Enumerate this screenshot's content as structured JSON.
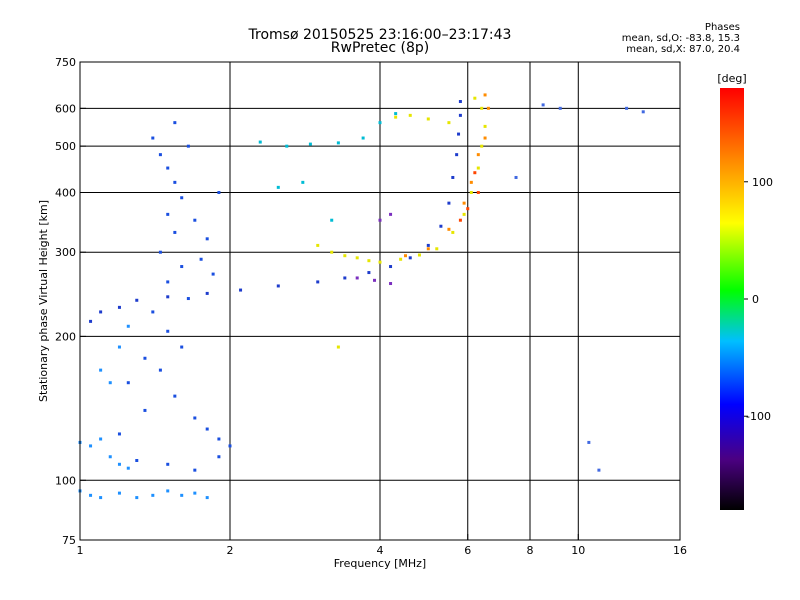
{
  "header": {
    "title": "Tromsø 20150525 23:16:00–23:17:43",
    "subtitle": "RwPretec (8p)",
    "stats_title": "Phases",
    "stats_o": "mean, sd,O: -83.8, 15.3",
    "stats_x": "mean, sd,X: 87.0, 20.4"
  },
  "chart_data": {
    "type": "scatter",
    "title": "Tromsø 20150525 23:16:00–23:17:43",
    "subtitle": "RwPretec (8p)",
    "xlabel": "Frequency [MHz]",
    "ylabel": "Stationary phase Virtual Height [km]",
    "xscale": "log",
    "yscale": "log",
    "xlim": [
      1,
      16
    ],
    "ylim": [
      75,
      750
    ],
    "x_ticks": [
      1,
      2,
      4,
      6,
      8,
      10,
      16
    ],
    "x_gridlines": [
      2,
      4,
      6,
      8,
      10
    ],
    "y_ticks": [
      75,
      100,
      200,
      300,
      400,
      500,
      600,
      750
    ],
    "y_gridlines": [
      100,
      200,
      300,
      400,
      500,
      600
    ],
    "grid": true,
    "colorbar": {
      "label": "[deg]",
      "range": [
        -180,
        180
      ],
      "ticks": [
        100,
        0,
        -100
      ],
      "colors": [
        "#000000",
        "#4b0082",
        "#0000ff",
        "#00bfff",
        "#00ff00",
        "#ffff00",
        "#ff8000",
        "#ff0000"
      ]
    },
    "series": [
      {
        "color": "#1e3ccc",
        "points": [
          [
            1.05,
            215
          ],
          [
            1.1,
            225
          ],
          [
            1.2,
            230
          ],
          [
            1.3,
            238
          ],
          [
            1.5,
            242
          ],
          [
            1.8,
            246
          ],
          [
            2.1,
            250
          ],
          [
            2.5,
            255
          ],
          [
            3.0,
            260
          ],
          [
            3.4,
            265
          ],
          [
            3.8,
            272
          ],
          [
            4.2,
            280
          ],
          [
            4.6,
            292
          ],
          [
            5.0,
            310
          ],
          [
            5.3,
            340
          ],
          [
            5.5,
            380
          ],
          [
            5.6,
            430
          ],
          [
            5.7,
            480
          ],
          [
            5.75,
            530
          ],
          [
            5.8,
            580
          ],
          [
            5.8,
            620
          ]
        ]
      },
      {
        "color": "#1a4fe0",
        "points": [
          [
            1.4,
            520
          ],
          [
            1.45,
            480
          ],
          [
            1.5,
            450
          ],
          [
            1.55,
            420
          ],
          [
            1.6,
            390
          ],
          [
            1.5,
            360
          ],
          [
            1.55,
            330
          ],
          [
            1.45,
            300
          ],
          [
            1.6,
            280
          ],
          [
            1.5,
            260
          ],
          [
            1.65,
            240
          ],
          [
            1.4,
            225
          ],
          [
            1.5,
            205
          ],
          [
            1.6,
            190
          ],
          [
            1.45,
            170
          ],
          [
            1.55,
            150
          ],
          [
            1.7,
            135
          ],
          [
            1.8,
            128
          ],
          [
            1.9,
            122
          ],
          [
            2.0,
            118
          ],
          [
            1.3,
            110
          ],
          [
            1.5,
            108
          ],
          [
            1.7,
            105
          ],
          [
            1.9,
            112
          ],
          [
            1.2,
            125
          ],
          [
            1.35,
            140
          ],
          [
            1.25,
            160
          ],
          [
            1.35,
            180
          ],
          [
            1.7,
            350
          ],
          [
            1.8,
            320
          ],
          [
            1.75,
            290
          ],
          [
            1.85,
            270
          ],
          [
            1.9,
            400
          ],
          [
            1.65,
            500
          ],
          [
            1.55,
            560
          ]
        ]
      },
      {
        "color": "#1e90ff",
        "points": [
          [
            1.0,
            95
          ],
          [
            1.05,
            93
          ],
          [
            1.1,
            92
          ],
          [
            1.2,
            94
          ],
          [
            1.3,
            92
          ],
          [
            1.4,
            93
          ],
          [
            1.5,
            95
          ],
          [
            1.6,
            93
          ],
          [
            1.7,
            94
          ],
          [
            1.8,
            92
          ],
          [
            1.0,
            120
          ],
          [
            1.05,
            118
          ],
          [
            1.1,
            122
          ],
          [
            1.15,
            112
          ],
          [
            1.2,
            108
          ],
          [
            1.25,
            106
          ],
          [
            1.1,
            170
          ],
          [
            1.15,
            160
          ],
          [
            1.2,
            190
          ],
          [
            1.25,
            210
          ]
        ]
      },
      {
        "color": "#00bcd4",
        "points": [
          [
            2.3,
            510
          ],
          [
            2.6,
            500
          ],
          [
            2.9,
            505
          ],
          [
            3.3,
            508
          ],
          [
            3.7,
            520
          ],
          [
            4.0,
            560
          ],
          [
            4.3,
            585
          ],
          [
            3.2,
            350
          ],
          [
            2.8,
            420
          ],
          [
            2.5,
            410
          ]
        ]
      },
      {
        "color": "#e6e600",
        "points": [
          [
            3.0,
            310
          ],
          [
            3.2,
            300
          ],
          [
            3.4,
            295
          ],
          [
            3.6,
            292
          ],
          [
            3.8,
            288
          ],
          [
            4.0,
            286
          ],
          [
            4.4,
            290
          ],
          [
            4.8,
            296
          ],
          [
            5.2,
            305
          ],
          [
            5.6,
            330
          ],
          [
            5.9,
            360
          ],
          [
            6.1,
            400
          ],
          [
            6.3,
            450
          ],
          [
            6.4,
            500
          ],
          [
            6.5,
            550
          ],
          [
            6.4,
            600
          ],
          [
            6.2,
            630
          ],
          [
            4.3,
            575
          ],
          [
            4.6,
            580
          ],
          [
            5.0,
            570
          ],
          [
            5.5,
            560
          ],
          [
            3.3,
            190
          ]
        ]
      },
      {
        "color": "#ff8c00",
        "points": [
          [
            4.5,
            295
          ],
          [
            5.0,
            305
          ],
          [
            5.5,
            335
          ],
          [
            5.9,
            380
          ],
          [
            6.1,
            420
          ],
          [
            6.3,
            480
          ],
          [
            6.5,
            520
          ],
          [
            6.6,
            600
          ],
          [
            6.5,
            640
          ]
        ]
      },
      {
        "color": "#ff4500",
        "points": [
          [
            6.3,
            400
          ],
          [
            6.0,
            370
          ],
          [
            5.8,
            350
          ],
          [
            6.2,
            440
          ]
        ]
      },
      {
        "color": "#7b2fbf",
        "points": [
          [
            3.6,
            265
          ],
          [
            3.9,
            262
          ],
          [
            4.2,
            258
          ],
          [
            4.0,
            350
          ],
          [
            4.2,
            360
          ]
        ]
      },
      {
        "color": "#4169e1",
        "points": [
          [
            8.5,
            610
          ],
          [
            9.2,
            600
          ],
          [
            10.5,
            120
          ],
          [
            11.0,
            105
          ],
          [
            12.5,
            600
          ],
          [
            13.5,
            590
          ],
          [
            7.5,
            430
          ]
        ]
      }
    ]
  }
}
